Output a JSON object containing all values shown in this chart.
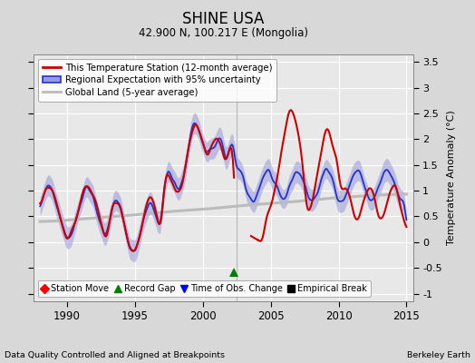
{
  "title": "SHINE USA",
  "subtitle": "42.900 N, 100.217 E (Mongolia)",
  "ylabel": "Temperature Anomaly (°C)",
  "footer_left": "Data Quality Controlled and Aligned at Breakpoints",
  "footer_right": "Berkeley Earth",
  "xlim": [
    1987.5,
    2015.5
  ],
  "ylim": [
    -1.15,
    3.65
  ],
  "yticks": [
    -1,
    -0.5,
    0,
    0.5,
    1,
    1.5,
    2,
    2.5,
    3,
    3.5
  ],
  "xticks": [
    1990,
    1995,
    2000,
    2005,
    2010,
    2015
  ],
  "bg_color": "#d8d8d8",
  "plot_bg_color": "#e8e8e8",
  "red_color": "#cc0000",
  "blue_color": "#2233cc",
  "blue_fill_color": "#9999dd",
  "gray_color": "#bbbbbb",
  "legend_entries": [
    "This Temperature Station (12-month average)",
    "Regional Expectation with 95% uncertainty",
    "Global Land (5-year average)"
  ],
  "marker_legend": [
    {
      "marker": "D",
      "color": "red",
      "label": "Station Move"
    },
    {
      "marker": "^",
      "color": "green",
      "label": "Record Gap"
    },
    {
      "marker": "v",
      "color": "blue",
      "label": "Time of Obs. Change"
    },
    {
      "marker": "s",
      "color": "black",
      "label": "Empirical Break"
    }
  ],
  "vline_x": 2002.5,
  "vline_color": "#bbbbbb",
  "record_gap_x": 2002.3,
  "record_gap_y": -0.58
}
